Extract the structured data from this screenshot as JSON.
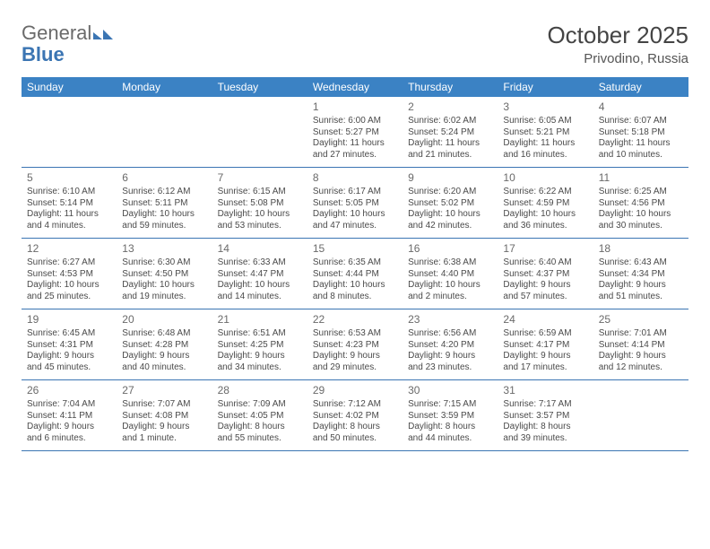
{
  "logo": {
    "general": "General",
    "blue": "Blue"
  },
  "title": "October 2025",
  "location": "Privodino, Russia",
  "colors": {
    "header_bg": "#3b82c4",
    "header_text": "#ffffff",
    "rule": "#3b75b3",
    "logo_gray": "#6a6a6a",
    "logo_blue": "#3b75b3"
  },
  "day_headers": [
    "Sunday",
    "Monday",
    "Tuesday",
    "Wednesday",
    "Thursday",
    "Friday",
    "Saturday"
  ],
  "weeks": [
    [
      {
        "day": "",
        "sunrise": "",
        "sunset": "",
        "daylight1": "",
        "daylight2": ""
      },
      {
        "day": "",
        "sunrise": "",
        "sunset": "",
        "daylight1": "",
        "daylight2": ""
      },
      {
        "day": "",
        "sunrise": "",
        "sunset": "",
        "daylight1": "",
        "daylight2": ""
      },
      {
        "day": "1",
        "sunrise": "Sunrise: 6:00 AM",
        "sunset": "Sunset: 5:27 PM",
        "daylight1": "Daylight: 11 hours",
        "daylight2": "and 27 minutes."
      },
      {
        "day": "2",
        "sunrise": "Sunrise: 6:02 AM",
        "sunset": "Sunset: 5:24 PM",
        "daylight1": "Daylight: 11 hours",
        "daylight2": "and 21 minutes."
      },
      {
        "day": "3",
        "sunrise": "Sunrise: 6:05 AM",
        "sunset": "Sunset: 5:21 PM",
        "daylight1": "Daylight: 11 hours",
        "daylight2": "and 16 minutes."
      },
      {
        "day": "4",
        "sunrise": "Sunrise: 6:07 AM",
        "sunset": "Sunset: 5:18 PM",
        "daylight1": "Daylight: 11 hours",
        "daylight2": "and 10 minutes."
      }
    ],
    [
      {
        "day": "5",
        "sunrise": "Sunrise: 6:10 AM",
        "sunset": "Sunset: 5:14 PM",
        "daylight1": "Daylight: 11 hours",
        "daylight2": "and 4 minutes."
      },
      {
        "day": "6",
        "sunrise": "Sunrise: 6:12 AM",
        "sunset": "Sunset: 5:11 PM",
        "daylight1": "Daylight: 10 hours",
        "daylight2": "and 59 minutes."
      },
      {
        "day": "7",
        "sunrise": "Sunrise: 6:15 AM",
        "sunset": "Sunset: 5:08 PM",
        "daylight1": "Daylight: 10 hours",
        "daylight2": "and 53 minutes."
      },
      {
        "day": "8",
        "sunrise": "Sunrise: 6:17 AM",
        "sunset": "Sunset: 5:05 PM",
        "daylight1": "Daylight: 10 hours",
        "daylight2": "and 47 minutes."
      },
      {
        "day": "9",
        "sunrise": "Sunrise: 6:20 AM",
        "sunset": "Sunset: 5:02 PM",
        "daylight1": "Daylight: 10 hours",
        "daylight2": "and 42 minutes."
      },
      {
        "day": "10",
        "sunrise": "Sunrise: 6:22 AM",
        "sunset": "Sunset: 4:59 PM",
        "daylight1": "Daylight: 10 hours",
        "daylight2": "and 36 minutes."
      },
      {
        "day": "11",
        "sunrise": "Sunrise: 6:25 AM",
        "sunset": "Sunset: 4:56 PM",
        "daylight1": "Daylight: 10 hours",
        "daylight2": "and 30 minutes."
      }
    ],
    [
      {
        "day": "12",
        "sunrise": "Sunrise: 6:27 AM",
        "sunset": "Sunset: 4:53 PM",
        "daylight1": "Daylight: 10 hours",
        "daylight2": "and 25 minutes."
      },
      {
        "day": "13",
        "sunrise": "Sunrise: 6:30 AM",
        "sunset": "Sunset: 4:50 PM",
        "daylight1": "Daylight: 10 hours",
        "daylight2": "and 19 minutes."
      },
      {
        "day": "14",
        "sunrise": "Sunrise: 6:33 AM",
        "sunset": "Sunset: 4:47 PM",
        "daylight1": "Daylight: 10 hours",
        "daylight2": "and 14 minutes."
      },
      {
        "day": "15",
        "sunrise": "Sunrise: 6:35 AM",
        "sunset": "Sunset: 4:44 PM",
        "daylight1": "Daylight: 10 hours",
        "daylight2": "and 8 minutes."
      },
      {
        "day": "16",
        "sunrise": "Sunrise: 6:38 AM",
        "sunset": "Sunset: 4:40 PM",
        "daylight1": "Daylight: 10 hours",
        "daylight2": "and 2 minutes."
      },
      {
        "day": "17",
        "sunrise": "Sunrise: 6:40 AM",
        "sunset": "Sunset: 4:37 PM",
        "daylight1": "Daylight: 9 hours",
        "daylight2": "and 57 minutes."
      },
      {
        "day": "18",
        "sunrise": "Sunrise: 6:43 AM",
        "sunset": "Sunset: 4:34 PM",
        "daylight1": "Daylight: 9 hours",
        "daylight2": "and 51 minutes."
      }
    ],
    [
      {
        "day": "19",
        "sunrise": "Sunrise: 6:45 AM",
        "sunset": "Sunset: 4:31 PM",
        "daylight1": "Daylight: 9 hours",
        "daylight2": "and 45 minutes."
      },
      {
        "day": "20",
        "sunrise": "Sunrise: 6:48 AM",
        "sunset": "Sunset: 4:28 PM",
        "daylight1": "Daylight: 9 hours",
        "daylight2": "and 40 minutes."
      },
      {
        "day": "21",
        "sunrise": "Sunrise: 6:51 AM",
        "sunset": "Sunset: 4:25 PM",
        "daylight1": "Daylight: 9 hours",
        "daylight2": "and 34 minutes."
      },
      {
        "day": "22",
        "sunrise": "Sunrise: 6:53 AM",
        "sunset": "Sunset: 4:23 PM",
        "daylight1": "Daylight: 9 hours",
        "daylight2": "and 29 minutes."
      },
      {
        "day": "23",
        "sunrise": "Sunrise: 6:56 AM",
        "sunset": "Sunset: 4:20 PM",
        "daylight1": "Daylight: 9 hours",
        "daylight2": "and 23 minutes."
      },
      {
        "day": "24",
        "sunrise": "Sunrise: 6:59 AM",
        "sunset": "Sunset: 4:17 PM",
        "daylight1": "Daylight: 9 hours",
        "daylight2": "and 17 minutes."
      },
      {
        "day": "25",
        "sunrise": "Sunrise: 7:01 AM",
        "sunset": "Sunset: 4:14 PM",
        "daylight1": "Daylight: 9 hours",
        "daylight2": "and 12 minutes."
      }
    ],
    [
      {
        "day": "26",
        "sunrise": "Sunrise: 7:04 AM",
        "sunset": "Sunset: 4:11 PM",
        "daylight1": "Daylight: 9 hours",
        "daylight2": "and 6 minutes."
      },
      {
        "day": "27",
        "sunrise": "Sunrise: 7:07 AM",
        "sunset": "Sunset: 4:08 PM",
        "daylight1": "Daylight: 9 hours",
        "daylight2": "and 1 minute."
      },
      {
        "day": "28",
        "sunrise": "Sunrise: 7:09 AM",
        "sunset": "Sunset: 4:05 PM",
        "daylight1": "Daylight: 8 hours",
        "daylight2": "and 55 minutes."
      },
      {
        "day": "29",
        "sunrise": "Sunrise: 7:12 AM",
        "sunset": "Sunset: 4:02 PM",
        "daylight1": "Daylight: 8 hours",
        "daylight2": "and 50 minutes."
      },
      {
        "day": "30",
        "sunrise": "Sunrise: 7:15 AM",
        "sunset": "Sunset: 3:59 PM",
        "daylight1": "Daylight: 8 hours",
        "daylight2": "and 44 minutes."
      },
      {
        "day": "31",
        "sunrise": "Sunrise: 7:17 AM",
        "sunset": "Sunset: 3:57 PM",
        "daylight1": "Daylight: 8 hours",
        "daylight2": "and 39 minutes."
      },
      {
        "day": "",
        "sunrise": "",
        "sunset": "",
        "daylight1": "",
        "daylight2": ""
      }
    ]
  ]
}
